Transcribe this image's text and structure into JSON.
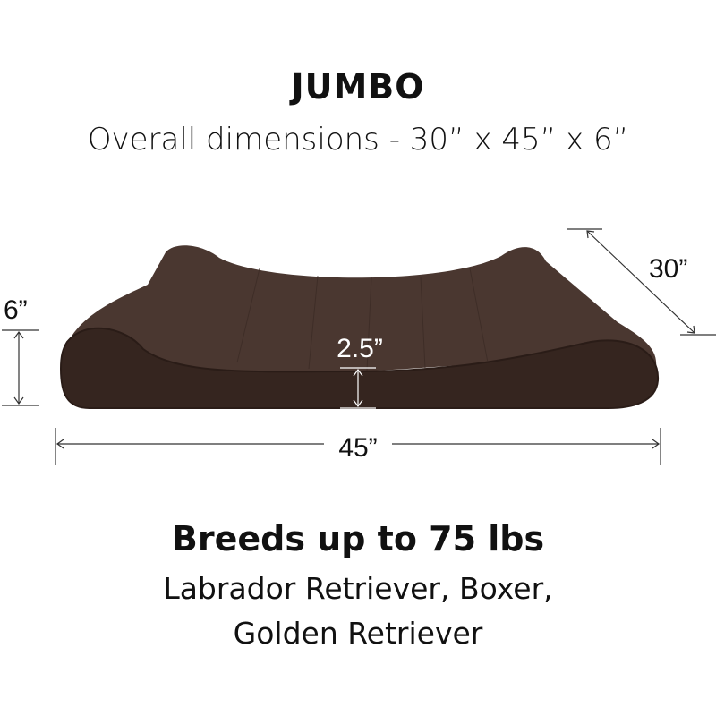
{
  "header": {
    "title": "JUMBO",
    "dimensions": "Overall dimensions - 30” x 45” x 6”"
  },
  "diagram": {
    "height_label": "6”",
    "depth_label": "30”",
    "width_label": "45”",
    "base_label": "2.5”",
    "bed_color": "#3e2c25"
  },
  "footer": {
    "breeds_title": "Breeds up to 75 lbs",
    "breeds_line1": "Labrador Retriever, Boxer,",
    "breeds_line2": "Golden Retriever"
  }
}
